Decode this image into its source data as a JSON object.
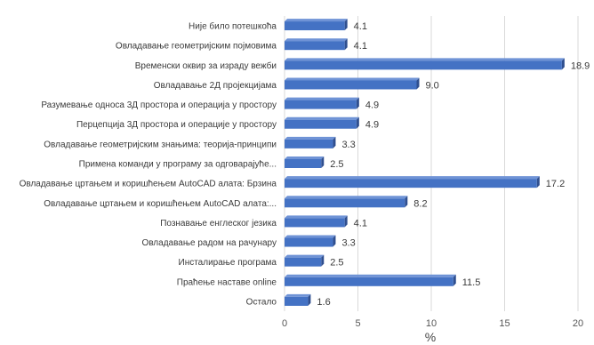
{
  "chart_data": {
    "type": "bar",
    "orientation": "horizontal",
    "categories": [
      "Није било потешкоћа",
      "Овладавање геометријским појмовима",
      "Временски оквир за израду вежби",
      "Овладавање 2Д пројекцијама",
      "Разумевање односа 3Д простора и операција у простору",
      "Перцепција 3Д простора и операције у простору",
      "Овладавање геометријским знањима: теорија-принципи",
      "Примена команди у програму за одговарајуће...",
      "Овладавање цртањем и коришћењем AutoCAD алата: Брзина",
      "Овладавање цртањем и коришћењем AutoCAD алата:...",
      "Познавање енглеског језика",
      "Овладавање радом на рачунару",
      "Инсталирање програма",
      "Праћење наставе online",
      "Остало"
    ],
    "values": [
      4.1,
      4.1,
      18.9,
      9.0,
      4.9,
      4.9,
      3.3,
      2.5,
      17.2,
      8.2,
      4.1,
      3.3,
      2.5,
      11.5,
      1.6
    ],
    "value_labels": [
      "4.1",
      "4.1",
      "18.9",
      "9.0",
      "4.9",
      "4.9",
      "3.3",
      "2.5",
      "17.2",
      "8.2",
      "4.1",
      "3.3",
      "2.5",
      "11.5",
      "1.6"
    ],
    "xlabel": "%",
    "xlim": [
      0,
      20
    ],
    "xticks": [
      "0",
      "5",
      "10",
      "15",
      "20"
    ],
    "grid": "vertical",
    "bar_color": "#4472c4",
    "bar_edge_color": "#2f4f8f",
    "grid_color": "#d9d9d9"
  }
}
